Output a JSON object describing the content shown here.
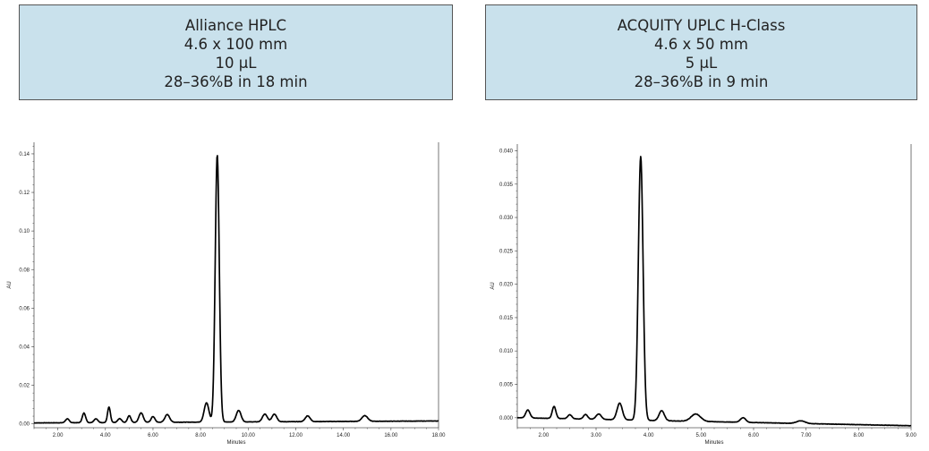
{
  "panels": [
    {
      "lines": [
        "Alliance HPLC",
        "4.6 x 100 mm",
        "10 µL",
        "28–36%B in 18 min"
      ]
    },
    {
      "lines": [
        "ACQUITY UPLC H-Class",
        "4.6 x 50 mm",
        "5 µL",
        "28–36%B in 9 min"
      ]
    }
  ],
  "colors": {
    "box_fill": "#c9e1ec",
    "box_border": "#555555",
    "trace": "#000000"
  },
  "chart_data": [
    {
      "type": "line",
      "xlabel": "Minutes",
      "ylabel": "AU",
      "xlim": [
        1.0,
        18.0
      ],
      "ylim": [
        -0.002,
        0.146
      ],
      "x_ticks": [
        2.0,
        4.0,
        6.0,
        8.0,
        10.0,
        12.0,
        14.0,
        16.0,
        18.0
      ],
      "x_tick_labels": [
        "2.00",
        "4.00",
        "6.00",
        "8.00",
        "10.00",
        "12.00",
        "14.00",
        "16.00",
        "18.00"
      ],
      "y_ticks": [
        0.0,
        0.02,
        0.04,
        0.06,
        0.08,
        0.1,
        0.12,
        0.14
      ],
      "y_tick_labels": [
        "0.00",
        "0.02",
        "0.04",
        "0.06",
        "0.08",
        "0.10",
        "0.12",
        "0.14"
      ],
      "grid": false,
      "baseline": [
        [
          1.0,
          0.0005
        ],
        [
          18.0,
          0.0015
        ]
      ],
      "peaks": [
        {
          "rt": 2.4,
          "height": 0.002,
          "width": 0.08
        },
        {
          "rt": 3.1,
          "height": 0.005,
          "width": 0.07
        },
        {
          "rt": 3.6,
          "height": 0.002,
          "width": 0.08
        },
        {
          "rt": 4.15,
          "height": 0.008,
          "width": 0.06
        },
        {
          "rt": 4.6,
          "height": 0.002,
          "width": 0.08
        },
        {
          "rt": 5.0,
          "height": 0.0035,
          "width": 0.07
        },
        {
          "rt": 5.5,
          "height": 0.005,
          "width": 0.09
        },
        {
          "rt": 6.0,
          "height": 0.003,
          "width": 0.08
        },
        {
          "rt": 6.6,
          "height": 0.004,
          "width": 0.1
        },
        {
          "rt": 8.25,
          "height": 0.01,
          "width": 0.1
        },
        {
          "rt": 8.7,
          "height": 0.1385,
          "width": 0.085
        },
        {
          "rt": 9.6,
          "height": 0.006,
          "width": 0.1
        },
        {
          "rt": 10.7,
          "height": 0.004,
          "width": 0.1
        },
        {
          "rt": 11.1,
          "height": 0.004,
          "width": 0.1
        },
        {
          "rt": 12.5,
          "height": 0.003,
          "width": 0.1
        },
        {
          "rt": 14.9,
          "height": 0.003,
          "width": 0.12
        }
      ]
    },
    {
      "type": "line",
      "xlabel": "Minutes",
      "ylabel": "AU",
      "xlim": [
        1.5,
        9.0
      ],
      "ylim": [
        -0.0015,
        0.041
      ],
      "x_ticks": [
        2.0,
        3.0,
        4.0,
        5.0,
        6.0,
        7.0,
        8.0,
        9.0
      ],
      "x_tick_labels": [
        "2.00",
        "3.00",
        "4.00",
        "5.00",
        "6.00",
        "7.00",
        "8.00",
        "9.00"
      ],
      "y_ticks": [
        0.0,
        0.005,
        0.01,
        0.015,
        0.02,
        0.025,
        0.03,
        0.035,
        0.04
      ],
      "y_tick_labels": [
        "0.000",
        "0.005",
        "0.010",
        "0.015",
        "0.020",
        "0.025",
        "0.030",
        "0.035",
        "0.040"
      ],
      "grid": false,
      "baseline": [
        [
          1.5,
          0.0
        ],
        [
          9.0,
          -0.0012
        ]
      ],
      "peaks": [
        {
          "rt": 1.7,
          "height": 0.0012,
          "width": 0.04
        },
        {
          "rt": 2.2,
          "height": 0.0018,
          "width": 0.035
        },
        {
          "rt": 2.5,
          "height": 0.0006,
          "width": 0.04
        },
        {
          "rt": 2.8,
          "height": 0.0007,
          "width": 0.04
        },
        {
          "rt": 3.05,
          "height": 0.0008,
          "width": 0.05
        },
        {
          "rt": 3.45,
          "height": 0.0025,
          "width": 0.05
        },
        {
          "rt": 3.85,
          "height": 0.0395,
          "width": 0.045
        },
        {
          "rt": 4.25,
          "height": 0.0015,
          "width": 0.05
        },
        {
          "rt": 4.9,
          "height": 0.0011,
          "width": 0.09
        },
        {
          "rt": 5.8,
          "height": 0.0007,
          "width": 0.05
        },
        {
          "rt": 6.9,
          "height": 0.0004,
          "width": 0.08
        }
      ]
    }
  ]
}
